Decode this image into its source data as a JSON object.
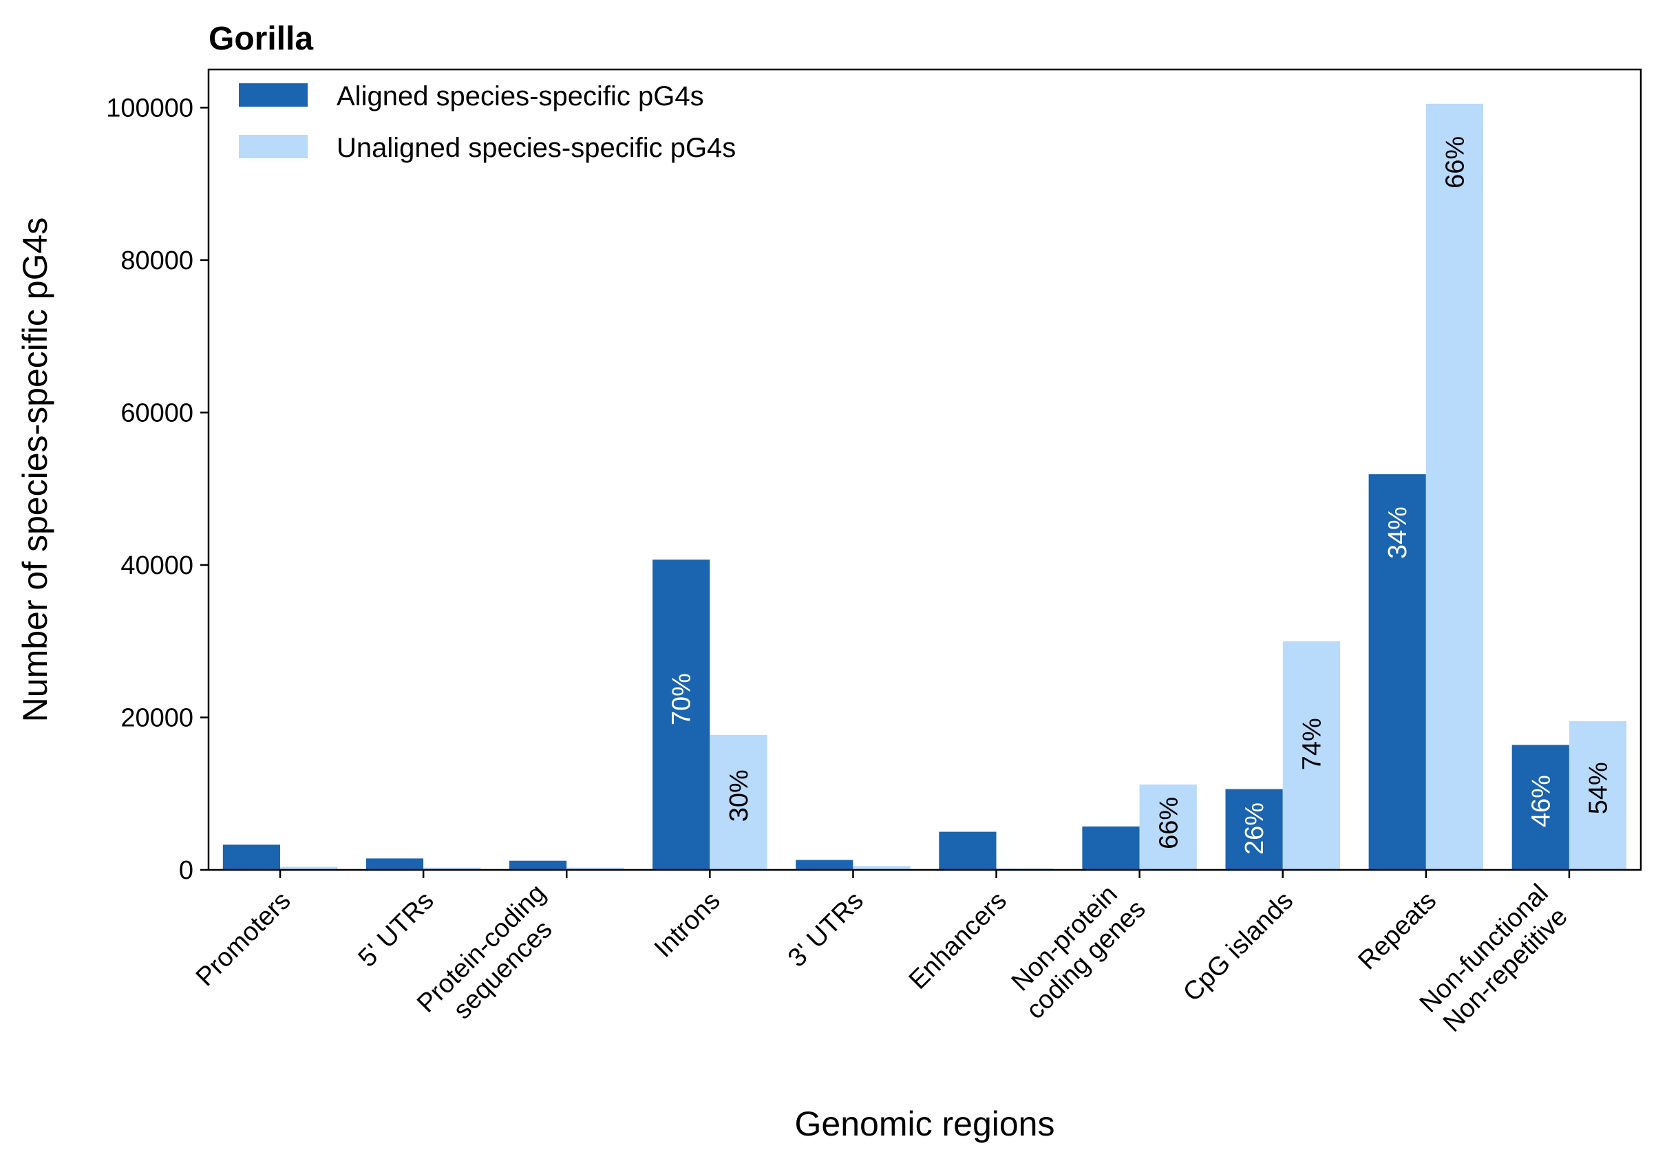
{
  "chart_data": {
    "type": "bar",
    "title": "Gorilla",
    "xlabel": "Genomic regions",
    "ylabel": "Number of species-specific pG4s",
    "ylim": [
      0,
      105000
    ],
    "yticks": [
      0,
      20000,
      40000,
      60000,
      80000,
      100000
    ],
    "ytick_labels": [
      "0",
      "20000",
      "40000",
      "60000",
      "80000",
      "100000"
    ],
    "grid": false,
    "legend_position": "top-left",
    "categories": [
      [
        "Promoters"
      ],
      [
        "5' UTRs"
      ],
      [
        "Protein-coding",
        "sequences"
      ],
      [
        "Introns"
      ],
      [
        "3' UTRs"
      ],
      [
        "Enhancers"
      ],
      [
        "Non-protein",
        "coding genes"
      ],
      [
        "CpG islands"
      ],
      [
        "Repeats"
      ],
      [
        "Non-functional",
        "Non-repetitive"
      ]
    ],
    "series": [
      {
        "name": "Aligned species-specific pG4s",
        "color": "#1a64b0",
        "values": [
          3300,
          1500,
          1200,
          40700,
          1300,
          5000,
          5700,
          10600,
          51900,
          16400
        ],
        "labels": [
          "",
          "",
          "",
          "70%",
          "",
          "",
          "",
          "26%",
          "34%",
          "46%"
        ],
        "label_color": "#ffffff"
      },
      {
        "name": "Unaligned species-specific pG4s",
        "color": "#b8dafb",
        "values": [
          400,
          300,
          300,
          17700,
          500,
          200,
          11200,
          30000,
          100500,
          19500
        ],
        "labels": [
          "",
          "",
          "",
          "30%",
          "",
          "",
          "66%",
          "74%",
          "66%",
          "54%"
        ],
        "label_color": "#000000"
      }
    ]
  }
}
